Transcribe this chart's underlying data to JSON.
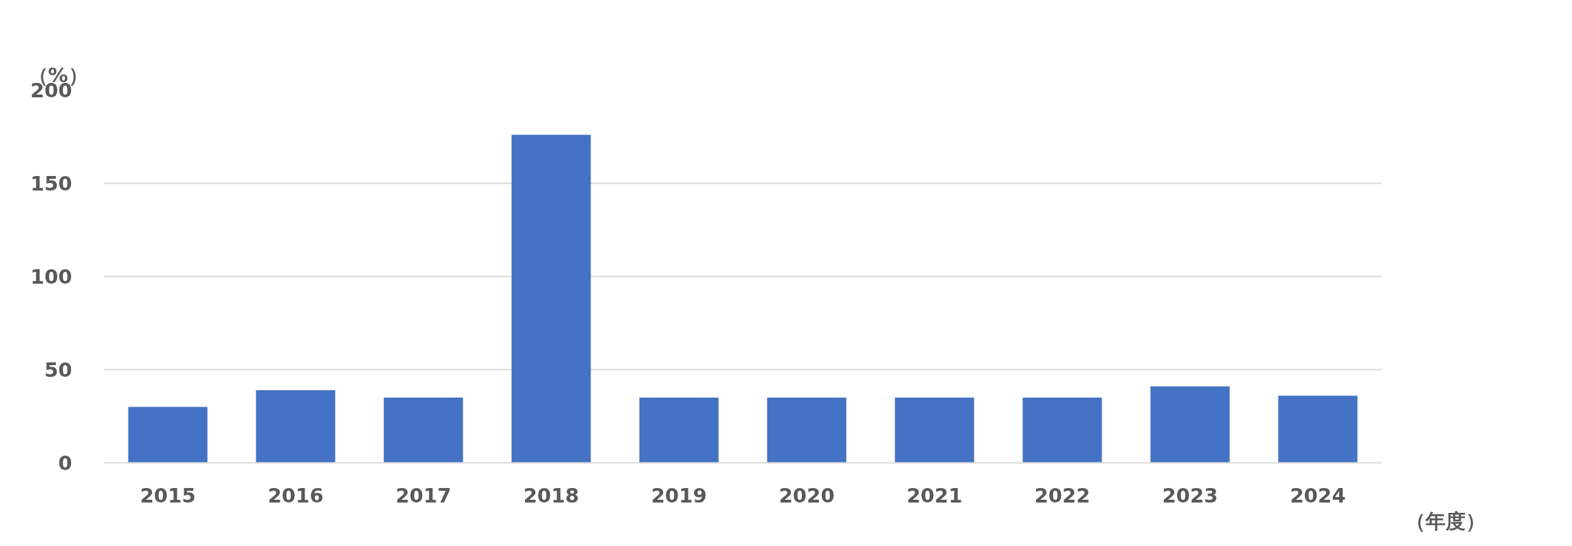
{
  "chart_data": {
    "type": "bar",
    "ylabel": "（%）",
    "xlabel": "（年度）",
    "categories": [
      "2015",
      "2016",
      "2017",
      "2018",
      "2019",
      "2020",
      "2021",
      "2022",
      "2023",
      "2024"
    ],
    "values": [
      30,
      39,
      35,
      176,
      35,
      35,
      35,
      35,
      41,
      36
    ],
    "color": "#4472c4",
    "ylim": [
      0,
      200
    ],
    "yticks": [
      0,
      50,
      100,
      150,
      200
    ],
    "grid": "y"
  }
}
